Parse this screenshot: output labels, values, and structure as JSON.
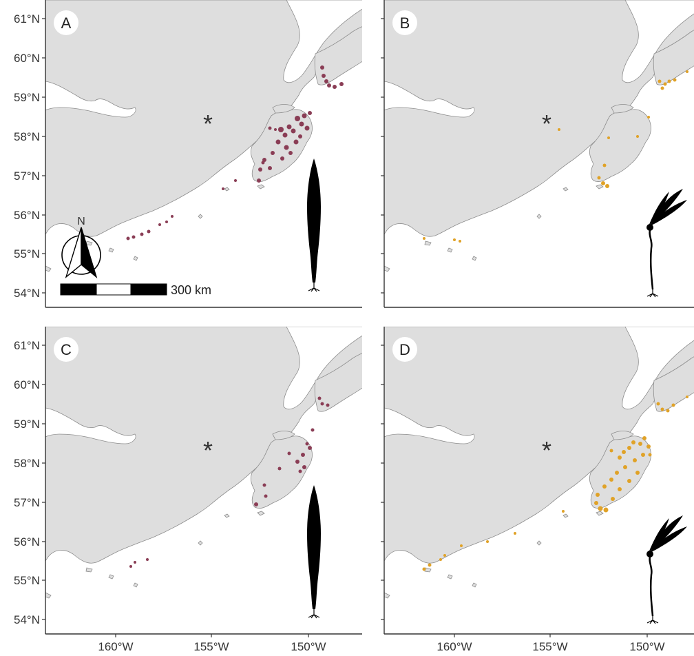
{
  "figure": {
    "panels": [
      {
        "label": "A",
        "point_color": "#8a3d55",
        "icon": "narrow-kelp-icon",
        "north_arrow": true,
        "scale_bar": true
      },
      {
        "label": "B",
        "point_color": "#e0a227",
        "icon": "branched-kelp-icon",
        "north_arrow": false,
        "scale_bar": false
      },
      {
        "label": "C",
        "point_color": "#8a3d55",
        "icon": "narrow-kelp-icon",
        "north_arrow": false,
        "scale_bar": false
      },
      {
        "label": "D",
        "point_color": "#e0a227",
        "icon": "branched-kelp-icon",
        "north_arrow": false,
        "scale_bar": false
      }
    ],
    "y_ticks": [
      "61°N",
      "60°N",
      "59°N",
      "58°N",
      "57°N",
      "56°N",
      "55°N",
      "54°N"
    ],
    "x_ticks": [
      "160°W",
      "155°W",
      "150°W"
    ],
    "asterisk": "*",
    "north_label": "N",
    "scale_bar_label": "300 km",
    "colors": {
      "land": "#dedede",
      "water": "#ffffff",
      "coast": "#8c8c8c",
      "axis": "#333333"
    }
  }
}
